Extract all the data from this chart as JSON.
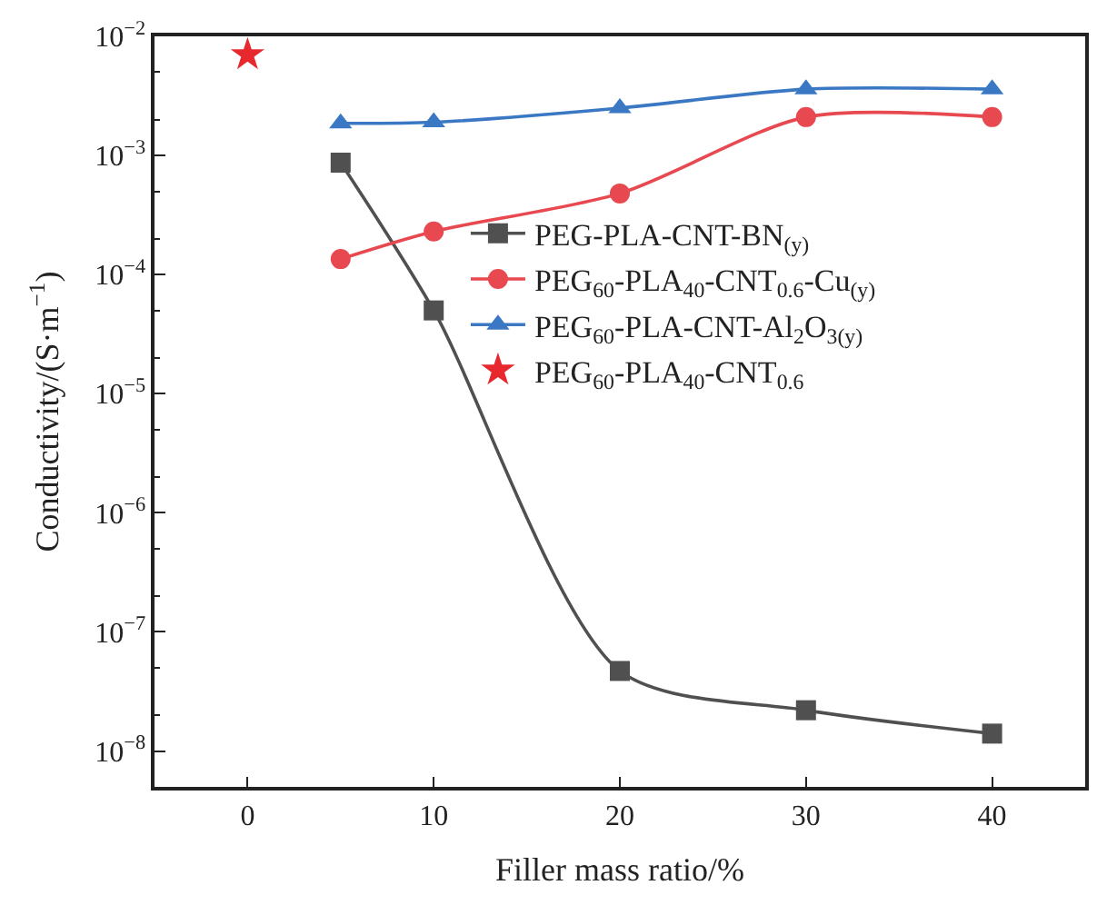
{
  "chart_data": {
    "type": "line",
    "xlabel": "Filler mass ratio/%",
    "ylabel": "Conductivity/(S·m$^{−1}$)",
    "log": "y",
    "legend": "right",
    "line_style": "solid",
    "xlim": [
      -5,
      45
    ],
    "xticks": [
      0,
      10,
      20,
      30,
      40
    ],
    "ylim": [
      5e-09,
      0.01
    ],
    "yticks": [
      {
        "value": 1e-08,
        "label": "10$^{−8}$"
      },
      {
        "value": 1e-07,
        "label": "10$^{−7}$"
      },
      {
        "value": 1e-06,
        "label": "10$^{−6}$"
      },
      {
        "value": 1e-05,
        "label": "10$^{−5}$"
      },
      {
        "value": 0.0001,
        "label": "10$^{−4}$"
      },
      {
        "value": 0.001,
        "label": "10$^{−3}$"
      },
      {
        "value": 0.01,
        "label": "10$^{−2}$"
      }
    ],
    "series": [
      {
        "name": "PEG-PLA-CNT-BN$_{(y)}$",
        "color": "#505050",
        "marker": "square",
        "x": [
          5,
          10,
          20,
          30,
          40
        ],
        "values": [
          0.00087,
          5e-05,
          4.7e-08,
          2.2e-08,
          1.4e-08
        ]
      },
      {
        "name": "PEG$_{60}$-PLA$_{40}$-CNT$_{0.6}$-Cu$_{(y)}$",
        "color": "#e8484f",
        "marker": "circle",
        "x": [
          5,
          10,
          20,
          30,
          40
        ],
        "values": [
          0.000135,
          0.00023,
          0.00048,
          0.0021,
          0.0021
        ]
      },
      {
        "name": "PEG$_{60}$-PLA-CNT-Al$_{2}$O$_{3(y)}$",
        "color": "#3a78c4",
        "marker": "triangle",
        "x": [
          5,
          10,
          20,
          30,
          40
        ],
        "values": [
          0.00186,
          0.0019,
          0.0025,
          0.0036,
          0.0036
        ]
      },
      {
        "name": "PEG$_{60}$-PLA$_{40}$-CNT$_{0.6}$",
        "type": "scatter",
        "color": "#e8282f",
        "marker": "star",
        "x": [
          0
        ],
        "values": [
          0.007
        ]
      }
    ]
  }
}
